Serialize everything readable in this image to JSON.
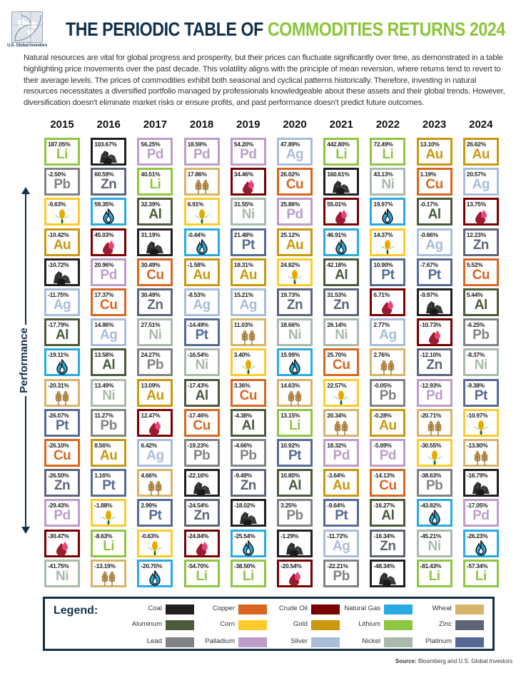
{
  "header": {
    "logo_text": "U.S. Global Investors",
    "title_part1": "THE PERIODIC TABLE OF ",
    "title_part2": "COMMODITIES RETURNS 2024"
  },
  "intro": "Natural resources are vital for global progress and prosperity, but their prices can fluctuate significantly over time, as demonstrated in a table highlighting price movements over the past decade. This volatility aligns with the principle of mean reversion, where returns tend to revert to their average levels. The prices of commodities exhibit both seasonal and cyclical patterns historically. Therefore, investing in natural resources necessitates a diversified portfolio managed by professionals knowledgeable about these assets and their global trends. However, diversification doesn't eliminate market risks or ensure profits, and past performance doesn't predict future outcomes.",
  "axis_label": "Performance",
  "legend": {
    "title": "Legend:",
    "items": [
      {
        "name": "Coal",
        "color": "#231f20"
      },
      {
        "name": "Copper",
        "color": "#d9661f"
      },
      {
        "name": "Crude Oil",
        "color": "#7a0000"
      },
      {
        "name": "Natural Gas",
        "color": "#29abe2"
      },
      {
        "name": "Wheat",
        "color": "#d7b46a"
      },
      {
        "name": "Aluminum",
        "color": "#4a5a3a"
      },
      {
        "name": "Corn",
        "color": "#ffcb2b"
      },
      {
        "name": "Gold",
        "color": "#c9980c"
      },
      {
        "name": "Lithium",
        "color": "#8dc63f"
      },
      {
        "name": "Zinc",
        "color": "#5f6578"
      },
      {
        "name": "Lead",
        "color": "#808285"
      },
      {
        "name": "Palladium",
        "color": "#bd9cc9"
      },
      {
        "name": "Silver",
        "color": "#a9bcda"
      },
      {
        "name": "Nickel",
        "color": "#a9b9aa"
      },
      {
        "name": "Platinum",
        "color": "#556a94"
      }
    ]
  },
  "source": {
    "label": "Source:",
    "text": " Bloomberg and U.S. Global Investors"
  },
  "chart_data": {
    "type": "table",
    "title": "The Periodic Table of Commodities Returns 2024",
    "ylabel": "Performance",
    "categories": [
      "2015",
      "2016",
      "2017",
      "2018",
      "2019",
      "2020",
      "2021",
      "2022",
      "2023",
      "2024"
    ],
    "commodities": {
      "Coal": {
        "symbol": "icon:coal",
        "color": "#231f20"
      },
      "Aluminum": {
        "symbol": "Al",
        "color": "#4a5a3a"
      },
      "Lead": {
        "symbol": "Pb",
        "color": "#808285"
      },
      "Copper": {
        "symbol": "Cu",
        "color": "#d9661f"
      },
      "Corn": {
        "symbol": "icon:corn",
        "color": "#ffcb2b"
      },
      "Palladium": {
        "symbol": "Pd",
        "color": "#bd9cc9"
      },
      "Crude Oil": {
        "symbol": "icon:oil",
        "color": "#7a0000"
      },
      "Gold": {
        "symbol": "Au",
        "color": "#c9980c"
      },
      "Silver": {
        "symbol": "Ag",
        "color": "#a9bcda"
      },
      "Natural Gas": {
        "symbol": "icon:gas",
        "color": "#29abe2"
      },
      "Lithium": {
        "symbol": "Li",
        "color": "#8dc63f"
      },
      "Nickel": {
        "symbol": "Ni",
        "color": "#a9b9aa"
      },
      "Wheat": {
        "symbol": "icon:wheat",
        "color": "#d7b46a"
      },
      "Zinc": {
        "symbol": "Zn",
        "color": "#5f6578"
      },
      "Platinum": {
        "symbol": "Pt",
        "color": "#556a94"
      }
    },
    "columns": [
      {
        "year": "2015",
        "cells": [
          {
            "c": "Lithium",
            "v": "187.05%"
          },
          {
            "c": "Lead",
            "v": "-2.50%"
          },
          {
            "c": "Corn",
            "v": "-9.63%"
          },
          {
            "c": "Gold",
            "v": "-10.42%"
          },
          {
            "c": "Coal",
            "v": "-10.72%"
          },
          {
            "c": "Silver",
            "v": "-11.75%"
          },
          {
            "c": "Aluminum",
            "v": "-17.79%"
          },
          {
            "c": "Natural Gas",
            "v": "-19.11%"
          },
          {
            "c": "Wheat",
            "v": "-20.31%"
          },
          {
            "c": "Platinum",
            "v": "-26.07%"
          },
          {
            "c": "Copper",
            "v": "-26.10%"
          },
          {
            "c": "Zinc",
            "v": "-26.50%"
          },
          {
            "c": "Palladium",
            "v": "-29.43%"
          },
          {
            "c": "Crude Oil",
            "v": "-30.47%"
          },
          {
            "c": "Nickel",
            "v": "-41.75%"
          }
        ]
      },
      {
        "year": "2016",
        "cells": [
          {
            "c": "Coal",
            "v": "103.67%"
          },
          {
            "c": "Zinc",
            "v": "60.59%"
          },
          {
            "c": "Natural Gas",
            "v": "59.35%"
          },
          {
            "c": "Crude Oil",
            "v": "45.03%"
          },
          {
            "c": "Palladium",
            "v": "20.96%"
          },
          {
            "c": "Copper",
            "v": "17.37%"
          },
          {
            "c": "Silver",
            "v": "14.86%"
          },
          {
            "c": "Aluminum",
            "v": "13.58%"
          },
          {
            "c": "Nickel",
            "v": "13.49%"
          },
          {
            "c": "Lead",
            "v": "11.27%"
          },
          {
            "c": "Gold",
            "v": "8.56%"
          },
          {
            "c": "Platinum",
            "v": "1.16%"
          },
          {
            "c": "Corn",
            "v": "-1.88%"
          },
          {
            "c": "Lithium",
            "v": "-8.63%"
          },
          {
            "c": "Wheat",
            "v": "-13.19%"
          }
        ]
      },
      {
        "year": "2017",
        "cells": [
          {
            "c": "Palladium",
            "v": "56.25%"
          },
          {
            "c": "Lithium",
            "v": "40.51%"
          },
          {
            "c": "Aluminum",
            "v": "32.39%"
          },
          {
            "c": "Coal",
            "v": "31.19%"
          },
          {
            "c": "Copper",
            "v": "30.49%"
          },
          {
            "c": "Zinc",
            "v": "30.49%"
          },
          {
            "c": "Nickel",
            "v": "27.51%"
          },
          {
            "c": "Lead",
            "v": "24.27%"
          },
          {
            "c": "Gold",
            "v": "13.09%"
          },
          {
            "c": "Crude Oil",
            "v": "12.47%"
          },
          {
            "c": "Silver",
            "v": "6.42%"
          },
          {
            "c": "Wheat",
            "v": "4.66%"
          },
          {
            "c": "Platinum",
            "v": "2.99%"
          },
          {
            "c": "Corn",
            "v": "-0.63%"
          },
          {
            "c": "Natural Gas",
            "v": "-20.70%"
          }
        ]
      },
      {
        "year": "2018",
        "cells": [
          {
            "c": "Palladium",
            "v": "18.59%"
          },
          {
            "c": "Wheat",
            "v": "17.86%"
          },
          {
            "c": "Corn",
            "v": "6.91%"
          },
          {
            "c": "Natural Gas",
            "v": "-0.44%"
          },
          {
            "c": "Gold",
            "v": "-1.58%"
          },
          {
            "c": "Silver",
            "v": "-8.53%"
          },
          {
            "c": "Platinum",
            "v": "-14.49%"
          },
          {
            "c": "Nickel",
            "v": "-16.54%"
          },
          {
            "c": "Aluminum",
            "v": "-17.43%"
          },
          {
            "c": "Copper",
            "v": "-17.46%"
          },
          {
            "c": "Lead",
            "v": "-19.23%"
          },
          {
            "c": "Coal",
            "v": "-22.16%"
          },
          {
            "c": "Zinc",
            "v": "-24.54%"
          },
          {
            "c": "Crude Oil",
            "v": "-24.84%"
          },
          {
            "c": "Lithium",
            "v": "-54.70%"
          }
        ]
      },
      {
        "year": "2019",
        "cells": [
          {
            "c": "Palladium",
            "v": "54.20%"
          },
          {
            "c": "Crude Oil",
            "v": "34.46%"
          },
          {
            "c": "Nickel",
            "v": "31.55%"
          },
          {
            "c": "Platinum",
            "v": "21.48%"
          },
          {
            "c": "Gold",
            "v": "18.31%"
          },
          {
            "c": "Silver",
            "v": "15.21%"
          },
          {
            "c": "Wheat",
            "v": "11.03%"
          },
          {
            "c": "Corn",
            "v": "3.40%"
          },
          {
            "c": "Copper",
            "v": "3.36%"
          },
          {
            "c": "Aluminum",
            "v": "-4.38%"
          },
          {
            "c": "Lead",
            "v": "-4.66%"
          },
          {
            "c": "Zinc",
            "v": "-9.49%"
          },
          {
            "c": "Coal",
            "v": "-18.02%"
          },
          {
            "c": "Natural Gas",
            "v": "-25.54%"
          },
          {
            "c": "Lithium",
            "v": "-38.50%"
          }
        ]
      },
      {
        "year": "2020",
        "cells": [
          {
            "c": "Silver",
            "v": "47.89%"
          },
          {
            "c": "Copper",
            "v": "26.02%"
          },
          {
            "c": "Palladium",
            "v": "25.86%"
          },
          {
            "c": "Gold",
            "v": "25.12%"
          },
          {
            "c": "Corn",
            "v": "24.82%"
          },
          {
            "c": "Zinc",
            "v": "19.73%"
          },
          {
            "c": "Nickel",
            "v": "18.66%"
          },
          {
            "c": "Natural Gas",
            "v": "15.99%"
          },
          {
            "c": "Wheat",
            "v": "14.63%"
          },
          {
            "c": "Lithium",
            "v": "13.15%"
          },
          {
            "c": "Platinum",
            "v": "10.92%"
          },
          {
            "c": "Aluminum",
            "v": "10.80%"
          },
          {
            "c": "Lead",
            "v": "3.25%"
          },
          {
            "c": "Coal",
            "v": "-1.29%"
          },
          {
            "c": "Crude Oil",
            "v": "-20.54%"
          }
        ]
      },
      {
        "year": "2021",
        "cells": [
          {
            "c": "Lithium",
            "v": "442.80%"
          },
          {
            "c": "Coal",
            "v": "160.61%"
          },
          {
            "c": "Crude Oil",
            "v": "55.01%"
          },
          {
            "c": "Natural Gas",
            "v": "46.91%"
          },
          {
            "c": "Aluminum",
            "v": "42.18%"
          },
          {
            "c": "Zinc",
            "v": "31.53%"
          },
          {
            "c": "Nickel",
            "v": "26.14%"
          },
          {
            "c": "Copper",
            "v": "25.70%"
          },
          {
            "c": "Corn",
            "v": "22.57%"
          },
          {
            "c": "Wheat",
            "v": "20.34%"
          },
          {
            "c": "Palladium",
            "v": "18.32%"
          },
          {
            "c": "Gold",
            "v": "-3.64%"
          },
          {
            "c": "Platinum",
            "v": "-9.64%"
          },
          {
            "c": "Silver",
            "v": "-11.72%"
          },
          {
            "c": "Lead",
            "v": "-22.21%"
          }
        ]
      },
      {
        "year": "2022",
        "cells": [
          {
            "c": "Lithium",
            "v": "72.49%"
          },
          {
            "c": "Nickel",
            "v": "43.13%"
          },
          {
            "c": "Natural Gas",
            "v": "19.97%"
          },
          {
            "c": "Corn",
            "v": "14.37%"
          },
          {
            "c": "Platinum",
            "v": "10.90%"
          },
          {
            "c": "Crude Oil",
            "v": "6.71%"
          },
          {
            "c": "Silver",
            "v": "2.77%"
          },
          {
            "c": "Wheat",
            "v": "2.76%"
          },
          {
            "c": "Lead",
            "v": "-0.05%"
          },
          {
            "c": "Gold",
            "v": "-0.28%"
          },
          {
            "c": "Palladium",
            "v": "-5.89%"
          },
          {
            "c": "Copper",
            "v": "-14.13%"
          },
          {
            "c": "Aluminum",
            "v": "-16.27%"
          },
          {
            "c": "Zinc",
            "v": "-16.34%"
          },
          {
            "c": "Coal",
            "v": "-48.34%"
          }
        ]
      },
      {
        "year": "2023",
        "cells": [
          {
            "c": "Gold",
            "v": "13.10%"
          },
          {
            "c": "Copper",
            "v": "1.19%"
          },
          {
            "c": "Aluminum",
            "v": "-0.17%"
          },
          {
            "c": "Silver",
            "v": "-0.66%"
          },
          {
            "c": "Platinum",
            "v": "-7.67%"
          },
          {
            "c": "Coal",
            "v": "-9.97%"
          },
          {
            "c": "Crude Oil",
            "v": "-10.73%"
          },
          {
            "c": "Zinc",
            "v": "-12.10%"
          },
          {
            "c": "Palladium",
            "v": "-12.93%"
          },
          {
            "c": "Wheat",
            "v": "-20.71%"
          },
          {
            "c": "Corn",
            "v": "-30.55%"
          },
          {
            "c": "Lead",
            "v": "-38.63%"
          },
          {
            "c": "Natural Gas",
            "v": "-43.82%"
          },
          {
            "c": "Nickel",
            "v": "-45.21%"
          },
          {
            "c": "Lithium",
            "v": "-81.43%"
          }
        ]
      },
      {
        "year": "2024",
        "cells": [
          {
            "c": "Gold",
            "v": "26.62%"
          },
          {
            "c": "Silver",
            "v": "20.57%"
          },
          {
            "c": "Crude Oil",
            "v": "13.75%"
          },
          {
            "c": "Zinc",
            "v": "12.23%"
          },
          {
            "c": "Copper",
            "v": "5.52%"
          },
          {
            "c": "Aluminum",
            "v": "5.44%"
          },
          {
            "c": "Lead",
            "v": "-6.25%"
          },
          {
            "c": "Nickel",
            "v": "-8.37%"
          },
          {
            "c": "Platinum",
            "v": "-9.38%"
          },
          {
            "c": "Corn",
            "v": "-10.97%"
          },
          {
            "c": "Wheat",
            "v": "-13.80%"
          },
          {
            "c": "Coal",
            "v": "-16.79%"
          },
          {
            "c": "Palladium",
            "v": "-17.05%"
          },
          {
            "c": "Natural Gas",
            "v": "-26.23%"
          },
          {
            "c": "Lithium",
            "v": "-57.34%"
          }
        ]
      }
    ]
  }
}
